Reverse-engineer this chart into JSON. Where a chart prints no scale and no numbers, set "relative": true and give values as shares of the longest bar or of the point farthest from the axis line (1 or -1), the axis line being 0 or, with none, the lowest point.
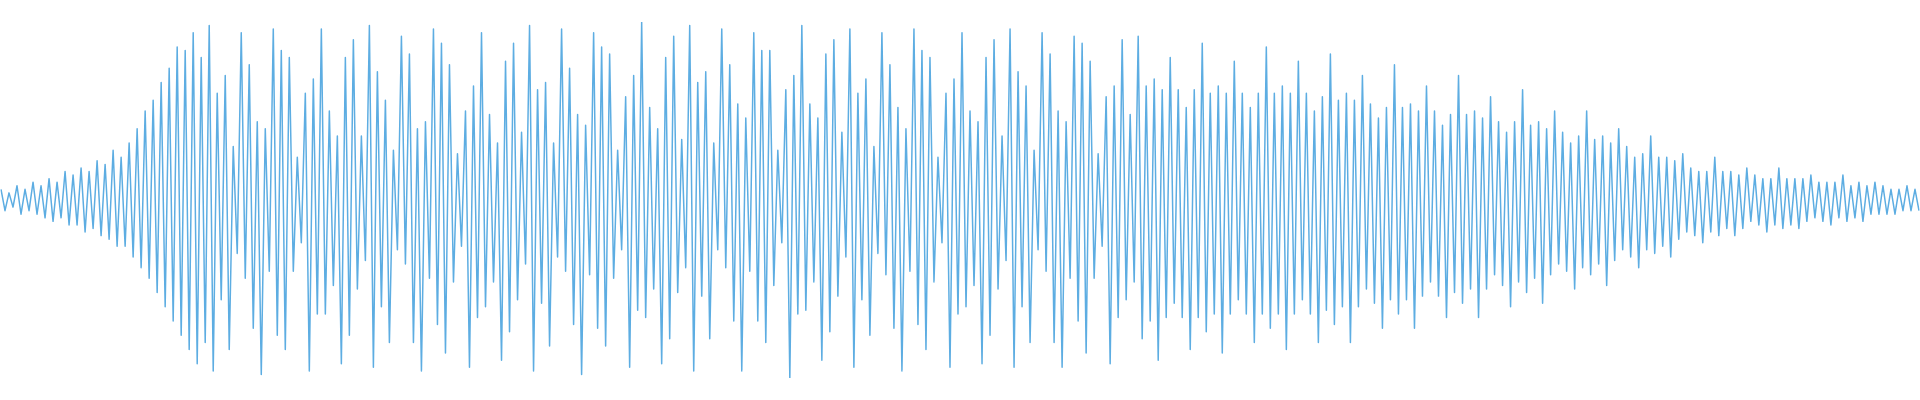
{
  "chart_data": {
    "type": "line",
    "relative": true,
    "color": "#5dade2",
    "categories": [
      null,
      null,
      null,
      null,
      null,
      null,
      null,
      null,
      null,
      null,
      null,
      null,
      null,
      null,
      null,
      null,
      null,
      null,
      null,
      null,
      null,
      null,
      null,
      null,
      null,
      null,
      null,
      null,
      null,
      null,
      null,
      null,
      null,
      null,
      null,
      null,
      null,
      null,
      null,
      null,
      null,
      null,
      null,
      null,
      null,
      null,
      null,
      null,
      null,
      null,
      null,
      null,
      null,
      null,
      null,
      null,
      null,
      null,
      null,
      null,
      null,
      null,
      null,
      null,
      null,
      null,
      null,
      null,
      null,
      null,
      null,
      null,
      null,
      null,
      null,
      null,
      null,
      null,
      null,
      null,
      null,
      null,
      null,
      null,
      null,
      null,
      null,
      null,
      null,
      null,
      null,
      null,
      null,
      null,
      null,
      null,
      null,
      null,
      null,
      null,
      null,
      null,
      null,
      null,
      null,
      null,
      null,
      null,
      null,
      null,
      null,
      null,
      null,
      null,
      null,
      null,
      null,
      null,
      null,
      null,
      null,
      null,
      null,
      null,
      null,
      null,
      null,
      null,
      null,
      null,
      null,
      null,
      null,
      null,
      null,
      null,
      null,
      null,
      null,
      null,
      null,
      null,
      null,
      null,
      null,
      null,
      null,
      null,
      null,
      null,
      null,
      null,
      null,
      null,
      null,
      null,
      null,
      null,
      null,
      null,
      null,
      null,
      null,
      null,
      null,
      null,
      null,
      null,
      null,
      null,
      null,
      null,
      null,
      null,
      null,
      null,
      null,
      null,
      null,
      null,
      null,
      null,
      null,
      null,
      null,
      null,
      null,
      null,
      null,
      null,
      null,
      null,
      null,
      null,
      null,
      null,
      null,
      null,
      null,
      null,
      null,
      null,
      null,
      null,
      null,
      null,
      null,
      null,
      null,
      null,
      null,
      null,
      null,
      null,
      null,
      null,
      null,
      null,
      null,
      null,
      null,
      null,
      null,
      null,
      null,
      null,
      null,
      null,
      null,
      null,
      null,
      null,
      null,
      null,
      null,
      null,
      null,
      null,
      null,
      null,
      null,
      null,
      null,
      null,
      null,
      null,
      null,
      null,
      null,
      null,
      null,
      null,
      null,
      null,
      null,
      null,
      null,
      null,
      null,
      null,
      null,
      null,
      null,
      null,
      null,
      null,
      null,
      null,
      null,
      null,
      null,
      null,
      null,
      null,
      null,
      null,
      null,
      null,
      null,
      null,
      null,
      null,
      null,
      null,
      null,
      null,
      null,
      null,
      null,
      null,
      null,
      null,
      null,
      null,
      null,
      null,
      null,
      null,
      null,
      null,
      null,
      null,
      null,
      null,
      null,
      null,
      null,
      null,
      null,
      null,
      null,
      null,
      null,
      null,
      null,
      null,
      null,
      null,
      null,
      null,
      null,
      null,
      null,
      null,
      null,
      null,
      null,
      null,
      null,
      null,
      null,
      null,
      null,
      null,
      null,
      null,
      null,
      null,
      null,
      null,
      null,
      null,
      null,
      null,
      null,
      null,
      null,
      null,
      null,
      null,
      null,
      null,
      null,
      null,
      null,
      null,
      null,
      null,
      null,
      null,
      null,
      null,
      null,
      null,
      null,
      null,
      null,
      null,
      null,
      null,
      null,
      null,
      null,
      null,
      null,
      null,
      null,
      null,
      null,
      null,
      null,
      null,
      null,
      null,
      null,
      null,
      null,
      null,
      null,
      null,
      null,
      null,
      null,
      null,
      null,
      null,
      null,
      null,
      null,
      null,
      null,
      null,
      null,
      null,
      null,
      null,
      null,
      null,
      null,
      null,
      null,
      null,
      null,
      null,
      null,
      null,
      null,
      null,
      null,
      null,
      null,
      null,
      null,
      null,
      null,
      null,
      null,
      null,
      null,
      null,
      null,
      null,
      null,
      null,
      null,
      null,
      null,
      null,
      null,
      null,
      null,
      null,
      null,
      null,
      null,
      null,
      null,
      null,
      null,
      null,
      null,
      null,
      null,
      null,
      null,
      null,
      null,
      null,
      null,
      null,
      null,
      null,
      null,
      null,
      null,
      null,
      null,
      null,
      null,
      null,
      null,
      null,
      null,
      null,
      null,
      null,
      null,
      null,
      null,
      null
    ],
    "values": [
      0.53,
      0.47,
      0.52,
      0.48,
      0.54,
      0.46,
      0.53,
      0.47,
      0.55,
      0.46,
      0.54,
      0.45,
      0.56,
      0.44,
      0.55,
      0.45,
      0.58,
      0.43,
      0.57,
      0.43,
      0.59,
      0.41,
      0.58,
      0.42,
      0.61,
      0.4,
      0.6,
      0.39,
      0.64,
      0.37,
      0.62,
      0.37,
      0.66,
      0.34,
      0.7,
      0.31,
      0.75,
      0.28,
      0.78,
      0.24,
      0.83,
      0.2,
      0.87,
      0.16,
      0.93,
      0.12,
      0.92,
      0.08,
      0.97,
      0.04,
      0.9,
      0.1,
      0.99,
      0.02,
      0.8,
      0.22,
      0.85,
      0.08,
      0.65,
      0.35,
      0.97,
      0.28,
      0.88,
      0.14,
      0.72,
      0.01,
      0.7,
      0.3,
      0.98,
      0.12,
      0.92,
      0.08,
      0.9,
      0.3,
      0.62,
      0.38,
      0.8,
      0.02,
      0.84,
      0.18,
      0.98,
      0.18,
      0.75,
      0.26,
      0.68,
      0.04,
      0.9,
      0.12,
      0.95,
      0.25,
      0.68,
      0.33,
      0.99,
      0.03,
      0.86,
      0.2,
      0.78,
      0.1,
      0.64,
      0.36,
      0.96,
      0.32,
      0.91,
      0.1,
      0.7,
      0.02,
      0.72,
      0.28,
      0.98,
      0.15,
      0.94,
      0.07,
      0.88,
      0.27,
      0.63,
      0.37,
      0.75,
      0.03,
      0.82,
      0.17,
      0.97,
      0.2,
      0.74,
      0.27,
      0.66,
      0.05,
      0.89,
      0.13,
      0.94,
      0.22,
      0.69,
      0.32,
      0.99,
      0.02,
      0.81,
      0.21,
      0.83,
      0.09,
      0.66,
      0.34,
      0.98,
      0.3,
      0.87,
      0.15,
      0.74,
      0.01,
      0.71,
      0.29,
      0.97,
      0.14,
      0.93,
      0.09,
      0.91,
      0.28,
      0.64,
      0.36,
      0.79,
      0.03,
      0.85,
      0.19,
      1,
      0.17,
      0.76,
      0.25,
      0.7,
      0.04,
      0.9,
      0.11,
      0.96,
      0.24,
      0.67,
      0.31,
      0.99,
      0.02,
      0.83,
      0.23,
      0.86,
      0.11,
      0.66,
      0.36,
      0.98,
      0.31,
      0.88,
      0.16,
      0.77,
      0.02,
      0.73,
      0.3,
      0.97,
      0.16,
      0.92,
      0.1,
      0.92,
      0.26,
      0.64,
      0.38,
      0.81,
      0,
      0.85,
      0.18,
      0.99,
      0.19,
      0.77,
      0.27,
      0.73,
      0.05,
      0.91,
      0.13,
      0.95,
      0.23,
      0.69,
      0.34,
      0.98,
      0.03,
      0.8,
      0.22,
      0.84,
      0.12,
      0.65,
      0.35,
      0.97,
      0.29,
      0.88,
      0.14,
      0.76,
      0.02,
      0.7,
      0.3,
      0.98,
      0.15,
      0.92,
      0.08,
      0.9,
      0.27,
      0.62,
      0.38,
      0.8,
      0.03,
      0.84,
      0.18,
      0.97,
      0.2,
      0.75,
      0.26,
      0.72,
      0.04,
      0.9,
      0.12,
      0.95,
      0.25,
      0.68,
      0.33,
      0.98,
      0.03,
      0.86,
      0.2,
      0.82,
      0.1,
      0.64,
      0.36,
      0.97,
      0.3,
      0.91,
      0.1,
      0.75,
      0.03,
      0.72,
      0.28,
      0.96,
      0.16,
      0.94,
      0.07,
      0.89,
      0.28,
      0.63,
      0.37,
      0.79,
      0.04,
      0.82,
      0.17,
      0.95,
      0.22,
      0.74,
      0.27,
      0.96,
      0.11,
      0.82,
      0.16,
      0.84,
      0.05,
      0.81,
      0.17,
      0.9,
      0.21,
      0.81,
      0.17,
      0.76,
      0.08,
      0.81,
      0.17,
      0.94,
      0.13,
      0.8,
      0.18,
      0.82,
      0.07,
      0.8,
      0.18,
      0.89,
      0.22,
      0.8,
      0.18,
      0.76,
      0.1,
      0.8,
      0.18,
      0.93,
      0.14,
      0.8,
      0.18,
      0.82,
      0.08,
      0.8,
      0.18,
      0.89,
      0.22,
      0.8,
      0.18,
      0.75,
      0.1,
      0.79,
      0.19,
      0.91,
      0.15,
      0.78,
      0.2,
      0.8,
      0.1,
      0.78,
      0.2,
      0.85,
      0.25,
      0.77,
      0.21,
      0.73,
      0.14,
      0.76,
      0.22,
      0.88,
      0.18,
      0.76,
      0.22,
      0.77,
      0.14,
      0.75,
      0.23,
      0.82,
      0.27,
      0.75,
      0.23,
      0.71,
      0.17,
      0.74,
      0.24,
      0.85,
      0.21,
      0.74,
      0.25,
      0.75,
      0.17,
      0.73,
      0.25,
      0.79,
      0.29,
      0.72,
      0.26,
      0.69,
      0.2,
      0.72,
      0.27,
      0.81,
      0.24,
      0.71,
      0.28,
      0.72,
      0.21,
      0.7,
      0.29,
      0.75,
      0.32,
      0.69,
      0.3,
      0.66,
      0.25,
      0.68,
      0.31,
      0.75,
      0.29,
      0.67,
      0.32,
      0.68,
      0.26,
      0.66,
      0.33,
      0.7,
      0.36,
      0.65,
      0.34,
      0.62,
      0.31,
      0.63,
      0.36,
      0.68,
      0.35,
      0.62,
      0.37,
      0.62,
      0.34,
      0.61,
      0.39,
      0.63,
      0.41,
      0.59,
      0.4,
      0.58,
      0.38,
      0.58,
      0.41,
      0.62,
      0.4,
      0.58,
      0.42,
      0.58,
      0.4,
      0.57,
      0.42,
      0.59,
      0.44,
      0.57,
      0.43,
      0.56,
      0.41,
      0.56,
      0.43,
      0.59,
      0.42,
      0.56,
      0.43,
      0.56,
      0.42,
      0.56,
      0.44,
      0.57,
      0.45,
      0.55,
      0.44,
      0.55,
      0.43,
      0.55,
      0.45,
      0.57,
      0.44,
      0.54,
      0.45,
      0.55,
      0.44,
      0.54,
      0.46,
      0.55,
      0.46,
      0.54,
      0.46,
      0.53,
      0.46,
      0.53,
      0.47,
      0.54,
      0.47,
      0.53,
      0.47
    ]
  }
}
